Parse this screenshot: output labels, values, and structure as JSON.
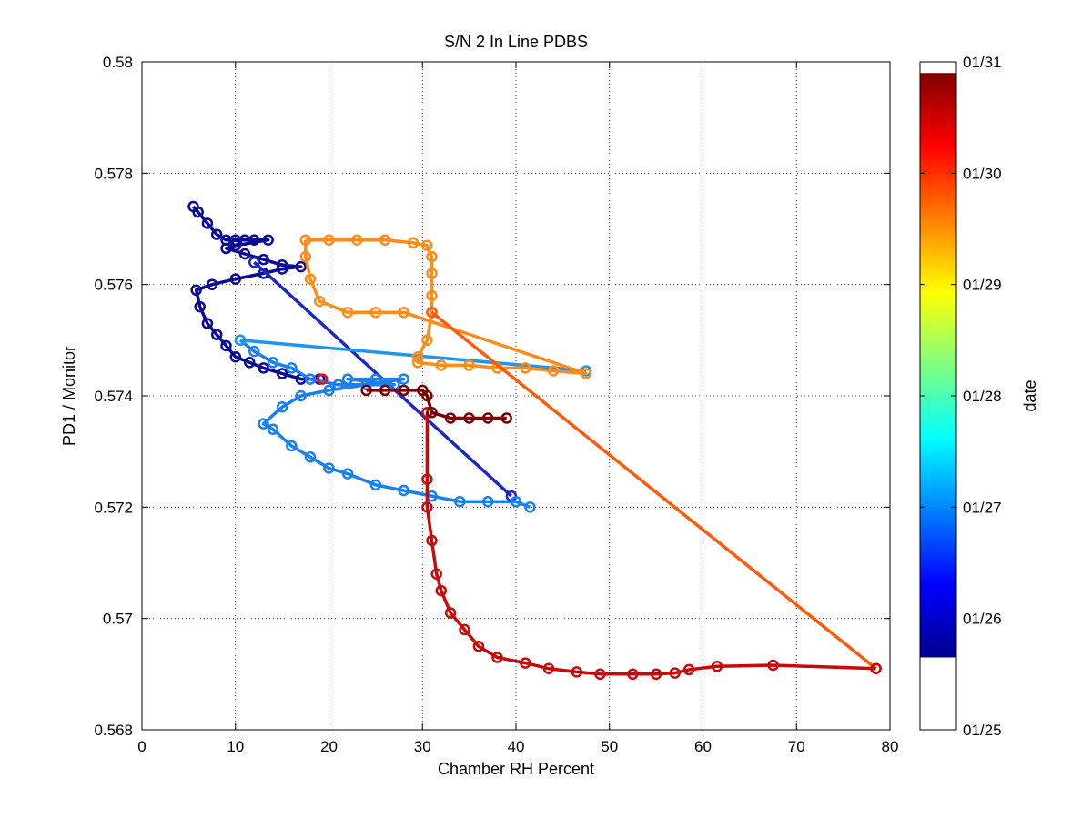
{
  "chart_data": {
    "type": "scatter",
    "title": "S/N 2 In Line PDBS",
    "xlabel": "Chamber RH Percent",
    "ylabel": "PD1 / Monitor",
    "xlim": [
      0,
      80
    ],
    "ylim": [
      0.568,
      0.58
    ],
    "xticks": [
      "0",
      "10",
      "20",
      "30",
      "40",
      "50",
      "60",
      "70",
      "80"
    ],
    "yticks": [
      "0.568",
      "0.57",
      "0.572",
      "0.574",
      "0.576",
      "0.578",
      "0.58"
    ],
    "grid": true,
    "colorbar": {
      "label": "date",
      "colormap": "jet",
      "ticks": [
        "01/25",
        "01/26",
        "01/27",
        "01/28",
        "01/29",
        "01/30",
        "01/31"
      ],
      "range_ticks": [
        0,
        6
      ],
      "filled_range": [
        0.65,
        5.9
      ]
    },
    "series": [
      {
        "color": "#0a0a96",
        "points": [
          [
            5.5,
            0.5774
          ],
          [
            6,
            0.5773
          ],
          [
            7,
            0.5771
          ],
          [
            8,
            0.5769
          ],
          [
            9,
            0.5768
          ],
          [
            10,
            0.5768
          ],
          [
            11,
            0.5768
          ],
          [
            12,
            0.5768
          ],
          [
            13.5,
            0.5768
          ],
          [
            10,
            0.5767
          ],
          [
            9,
            0.57665
          ],
          [
            11,
            0.57655
          ],
          [
            13,
            0.57645
          ],
          [
            15,
            0.57635
          ],
          [
            17,
            0.57632
          ],
          [
            15,
            0.57628
          ],
          [
            13,
            0.5762
          ],
          [
            10,
            0.5761
          ],
          [
            7.5,
            0.576
          ],
          [
            5.8,
            0.5759
          ],
          [
            6.2,
            0.5756
          ],
          [
            7,
            0.5753
          ],
          [
            8,
            0.5751
          ],
          [
            9,
            0.5749
          ],
          [
            10,
            0.5747
          ],
          [
            11.5,
            0.5746
          ],
          [
            13,
            0.5745
          ],
          [
            15,
            0.5744
          ],
          [
            17,
            0.5743
          ],
          [
            19,
            0.5743
          ]
        ],
        "line": true
      },
      {
        "color": "#1a28c8",
        "points": [
          [
            12,
            0.5764
          ],
          [
            39.5,
            0.5722
          ]
        ],
        "line": true
      },
      {
        "color": "#1a7ff0",
        "points": [
          [
            10.5,
            0.575
          ],
          [
            12,
            0.5748
          ],
          [
            14,
            0.5746
          ],
          [
            16,
            0.5745
          ],
          [
            18,
            0.5743
          ],
          [
            21,
            0.5742
          ],
          [
            24,
            0.5742
          ],
          [
            27,
            0.5742
          ],
          [
            22,
            0.5743
          ],
          [
            25,
            0.5743
          ],
          [
            28,
            0.5743
          ],
          [
            20,
            0.5741
          ],
          [
            17,
            0.574
          ],
          [
            15,
            0.5738
          ],
          [
            13,
            0.5735
          ],
          [
            14,
            0.5734
          ],
          [
            16,
            0.5731
          ],
          [
            18,
            0.5729
          ],
          [
            20,
            0.5727
          ],
          [
            22,
            0.5726
          ],
          [
            25,
            0.5724
          ],
          [
            28,
            0.5723
          ],
          [
            31,
            0.5722
          ],
          [
            34,
            0.5721
          ],
          [
            37,
            0.5721
          ],
          [
            40,
            0.5721
          ],
          [
            41.5,
            0.572
          ]
        ],
        "line": true
      },
      {
        "color": "#1e96f0",
        "points": [
          [
            10.5,
            0.575
          ],
          [
            47.5,
            0.57445
          ]
        ],
        "line": true
      },
      {
        "color": "#ff8c1a",
        "points": [
          [
            17.5,
            0.5768
          ],
          [
            20,
            0.5768
          ],
          [
            23,
            0.5768
          ],
          [
            26,
            0.5768
          ],
          [
            29,
            0.57675
          ],
          [
            30.5,
            0.5767
          ],
          [
            31,
            0.5765
          ],
          [
            31,
            0.5762
          ],
          [
            31,
            0.5758
          ],
          [
            31,
            0.5755
          ],
          [
            30.5,
            0.575
          ],
          [
            29.5,
            0.5747
          ],
          [
            29.5,
            0.5746
          ],
          [
            32,
            0.57455
          ],
          [
            35,
            0.57455
          ],
          [
            38,
            0.5745
          ],
          [
            41,
            0.5745
          ],
          [
            44,
            0.57445
          ],
          [
            47.5,
            0.5744
          ],
          [
            28,
            0.5755
          ],
          [
            25,
            0.5755
          ],
          [
            22,
            0.5755
          ],
          [
            19,
            0.5757
          ],
          [
            18,
            0.5761
          ],
          [
            17.5,
            0.5765
          ],
          [
            17.5,
            0.5768
          ]
        ],
        "line": true
      },
      {
        "color": "#ff5a0a",
        "points": [
          [
            31,
            0.5755
          ],
          [
            78.5,
            0.5691
          ]
        ],
        "line": true
      },
      {
        "color": "#c80a0a",
        "points": [
          [
            30.5,
            0.5737
          ],
          [
            30.5,
            0.5725
          ],
          [
            30.5,
            0.572
          ],
          [
            31,
            0.5714
          ],
          [
            31.5,
            0.5708
          ],
          [
            32,
            0.5705
          ],
          [
            33,
            0.5701
          ],
          [
            34.5,
            0.5698
          ],
          [
            36,
            0.5695
          ],
          [
            38,
            0.5693
          ],
          [
            41,
            0.5692
          ],
          [
            43.5,
            0.5691
          ],
          [
            46.5,
            0.56904
          ],
          [
            49,
            0.569
          ],
          [
            52.5,
            0.569
          ],
          [
            55,
            0.569
          ],
          [
            57,
            0.56902
          ],
          [
            58.5,
            0.56908
          ],
          [
            61.5,
            0.56914
          ],
          [
            67.5,
            0.56916
          ],
          [
            78.5,
            0.5691
          ]
        ],
        "line": true
      },
      {
        "color": "#7a0000",
        "points": [
          [
            24,
            0.5741
          ],
          [
            26,
            0.5741
          ],
          [
            28,
            0.5741
          ],
          [
            30,
            0.5741
          ],
          [
            30.5,
            0.574
          ],
          [
            31,
            0.5737
          ],
          [
            33,
            0.5736
          ],
          [
            35,
            0.5736
          ],
          [
            37,
            0.5736
          ],
          [
            39,
            0.5736
          ]
        ],
        "line": true
      },
      {
        "color": "#e0101e",
        "points": [
          [
            19.3,
            0.5743
          ]
        ],
        "line": false
      }
    ]
  }
}
